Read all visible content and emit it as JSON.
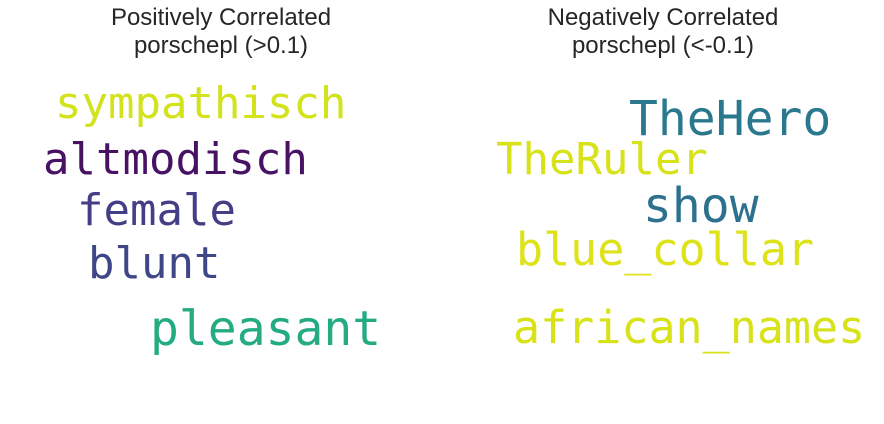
{
  "chart_data": [
    {
      "type": "wordcloud",
      "title_line1": "Positively Correlated",
      "title_line2": "porschepl (>0.1)",
      "words": [
        {
          "text": "sympathisch",
          "color": "#d2e21b"
        },
        {
          "text": "altmodisch",
          "color": "#471164"
        },
        {
          "text": "female",
          "color": "#433e85"
        },
        {
          "text": "blunt",
          "color": "#3f4788"
        },
        {
          "text": "pleasant",
          "color": "#25ab82"
        }
      ]
    },
    {
      "type": "wordcloud",
      "title_line1": "Negatively Correlated",
      "title_line2": "porschepl (<-0.1)",
      "words": [
        {
          "text": "TheHero",
          "color": "#2a788e"
        },
        {
          "text": "TheRuler",
          "color": "#d8e219"
        },
        {
          "text": "show",
          "color": "#2c728e"
        },
        {
          "text": "blue_collar",
          "color": "#dde318"
        },
        {
          "text": "african_names",
          "color": "#d8e219"
        }
      ]
    }
  ]
}
